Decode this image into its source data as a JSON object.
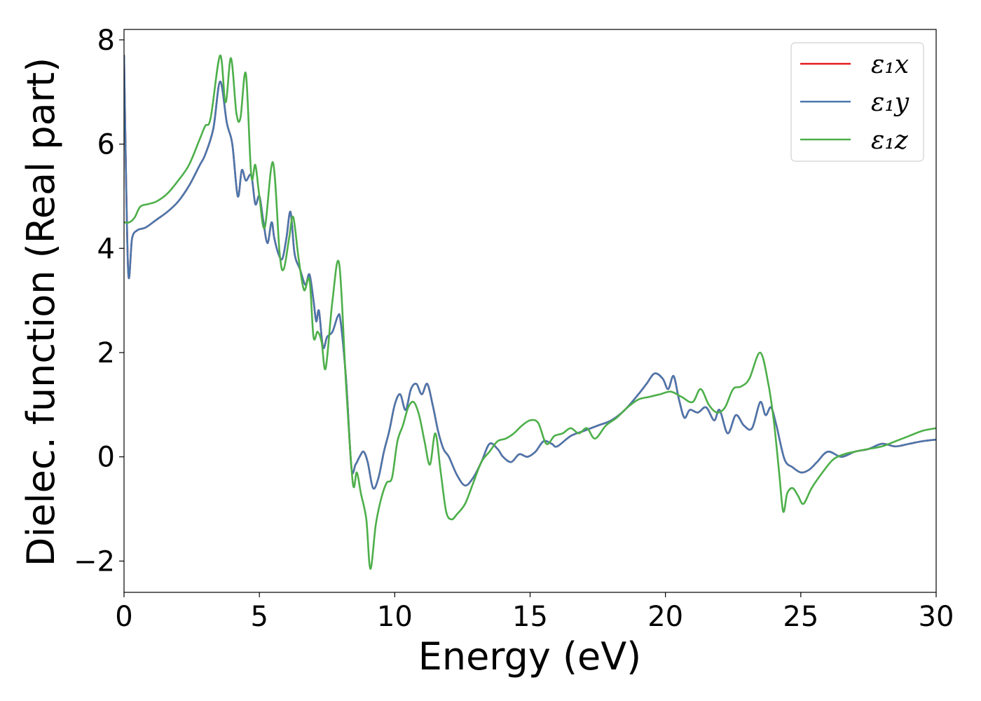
{
  "chart_data": {
    "type": "line",
    "xlabel": "Energy (eV)",
    "ylabel": "Dielec. function (Real part)",
    "xlim": [
      0,
      30
    ],
    "ylim": [
      -2.6,
      8.2
    ],
    "xticks": [
      0,
      5,
      10,
      15,
      20,
      25,
      30
    ],
    "xtick_labels": [
      "0",
      "5",
      "10",
      "15",
      "20",
      "25",
      "30"
    ],
    "yticks": [
      -2,
      0,
      2,
      4,
      6,
      8
    ],
    "ytick_labels": [
      "−2",
      "0",
      "2",
      "4",
      "6",
      "8"
    ],
    "grid": false,
    "legend_position": "top-right",
    "series": [
      {
        "name": "ε₁x",
        "color": "#e41a1c",
        "x": [
          0,
          0.15,
          0.3,
          0.5,
          0.8,
          1.2,
          1.6,
          2.0,
          2.4,
          2.8,
          3.0,
          3.3,
          3.55,
          3.8,
          4.0,
          4.2,
          4.35,
          4.5,
          4.7,
          4.85,
          5.0,
          5.15,
          5.3,
          5.45,
          5.55,
          5.7,
          5.85,
          6.0,
          6.15,
          6.3,
          6.5,
          6.7,
          6.85,
          7.0,
          7.1,
          7.2,
          7.35,
          7.5,
          7.7,
          7.9,
          8.0,
          8.2,
          8.4,
          8.55,
          8.7,
          8.85,
          9.0,
          9.2,
          9.4,
          9.6,
          9.8,
          10.0,
          10.2,
          10.4,
          10.6,
          10.8,
          11.0,
          11.2,
          11.4,
          11.6,
          11.8,
          12.0,
          12.3,
          12.6,
          12.9,
          13.2,
          13.5,
          13.8,
          14.0,
          14.3,
          14.6,
          14.9,
          15.2,
          15.5,
          15.8,
          16.0,
          16.5,
          17.0,
          17.5,
          18.0,
          18.5,
          19.0,
          19.3,
          19.6,
          19.9,
          20.1,
          20.3,
          20.5,
          20.7,
          20.9,
          21.2,
          21.5,
          21.8,
          22.0,
          22.3,
          22.6,
          22.9,
          23.2,
          23.5,
          23.7,
          23.9,
          24.1,
          24.4,
          24.7,
          25.0,
          25.3,
          25.6,
          26.0,
          26.5,
          27.0,
          27.5,
          28.0,
          28.5,
          29.0,
          29.5,
          30.0
        ],
        "y": [
          7.7,
          3.6,
          4.2,
          4.35,
          4.4,
          4.55,
          4.7,
          4.9,
          5.2,
          5.6,
          5.8,
          6.3,
          7.2,
          6.4,
          6.0,
          5.0,
          5.5,
          5.3,
          5.4,
          4.85,
          5.0,
          4.5,
          4.1,
          4.5,
          4.2,
          3.9,
          3.8,
          4.2,
          4.7,
          3.9,
          3.6,
          3.3,
          3.5,
          3.0,
          2.6,
          2.8,
          2.1,
          2.3,
          2.4,
          2.7,
          2.6,
          1.5,
          -0.2,
          -0.15,
          0.0,
          0.1,
          -0.1,
          -0.6,
          -0.4,
          0.1,
          0.5,
          1.0,
          1.2,
          0.9,
          1.3,
          1.4,
          1.2,
          1.4,
          1.0,
          0.5,
          0.15,
          0.0,
          -0.35,
          -0.55,
          -0.4,
          -0.1,
          0.25,
          0.15,
          0.0,
          -0.1,
          0.05,
          0.0,
          0.1,
          0.3,
          0.25,
          0.2,
          0.4,
          0.5,
          0.6,
          0.7,
          0.9,
          1.2,
          1.4,
          1.6,
          1.5,
          1.3,
          1.55,
          1.1,
          0.75,
          0.9,
          0.85,
          0.95,
          0.7,
          0.9,
          0.45,
          0.8,
          0.6,
          0.55,
          1.05,
          0.8,
          0.95,
          0.6,
          -0.05,
          -0.2,
          -0.3,
          -0.25,
          -0.1,
          0.1,
          0.0,
          0.1,
          0.15,
          0.25,
          0.2,
          0.25,
          0.3,
          0.33
        ]
      },
      {
        "name": "ε₁y",
        "color": "#4a77ad",
        "x": [
          0,
          0.15,
          0.3,
          0.5,
          0.8,
          1.2,
          1.6,
          2.0,
          2.4,
          2.8,
          3.0,
          3.3,
          3.55,
          3.8,
          4.0,
          4.2,
          4.35,
          4.5,
          4.7,
          4.85,
          5.0,
          5.15,
          5.3,
          5.45,
          5.55,
          5.7,
          5.85,
          6.0,
          6.15,
          6.3,
          6.5,
          6.7,
          6.85,
          7.0,
          7.1,
          7.2,
          7.35,
          7.5,
          7.7,
          7.9,
          8.0,
          8.2,
          8.4,
          8.55,
          8.7,
          8.85,
          9.0,
          9.2,
          9.4,
          9.6,
          9.8,
          10.0,
          10.2,
          10.4,
          10.6,
          10.8,
          11.0,
          11.2,
          11.4,
          11.6,
          11.8,
          12.0,
          12.3,
          12.6,
          12.9,
          13.2,
          13.5,
          13.8,
          14.0,
          14.3,
          14.6,
          14.9,
          15.2,
          15.5,
          15.8,
          16.0,
          16.5,
          17.0,
          17.5,
          18.0,
          18.5,
          19.0,
          19.3,
          19.6,
          19.9,
          20.1,
          20.3,
          20.5,
          20.7,
          20.9,
          21.2,
          21.5,
          21.8,
          22.0,
          22.3,
          22.6,
          22.9,
          23.2,
          23.5,
          23.7,
          23.9,
          24.1,
          24.4,
          24.7,
          25.0,
          25.3,
          25.6,
          26.0,
          26.5,
          27.0,
          27.5,
          28.0,
          28.5,
          29.0,
          29.5,
          30.0
        ],
        "y": [
          7.7,
          3.6,
          4.2,
          4.35,
          4.4,
          4.55,
          4.7,
          4.9,
          5.2,
          5.6,
          5.8,
          6.3,
          7.2,
          6.4,
          6.0,
          5.0,
          5.5,
          5.3,
          5.4,
          4.85,
          5.0,
          4.5,
          4.1,
          4.5,
          4.2,
          3.9,
          3.8,
          4.2,
          4.7,
          3.9,
          3.6,
          3.3,
          3.5,
          3.0,
          2.6,
          2.8,
          2.1,
          2.3,
          2.4,
          2.7,
          2.6,
          1.5,
          -0.2,
          -0.15,
          0.0,
          0.1,
          -0.1,
          -0.6,
          -0.4,
          0.1,
          0.5,
          1.0,
          1.2,
          0.9,
          1.3,
          1.4,
          1.2,
          1.4,
          1.0,
          0.5,
          0.15,
          0.0,
          -0.35,
          -0.55,
          -0.4,
          -0.1,
          0.25,
          0.15,
          0.0,
          -0.1,
          0.05,
          0.0,
          0.1,
          0.3,
          0.25,
          0.2,
          0.4,
          0.5,
          0.6,
          0.7,
          0.9,
          1.2,
          1.4,
          1.6,
          1.5,
          1.3,
          1.55,
          1.1,
          0.75,
          0.9,
          0.85,
          0.95,
          0.7,
          0.9,
          0.45,
          0.8,
          0.6,
          0.55,
          1.05,
          0.8,
          0.95,
          0.6,
          -0.05,
          -0.2,
          -0.3,
          -0.25,
          -0.1,
          0.1,
          0.0,
          0.1,
          0.15,
          0.25,
          0.2,
          0.25,
          0.3,
          0.33
        ]
      },
      {
        "name": "ε₁z",
        "color": "#4daf4a",
        "x": [
          0,
          0.2,
          0.4,
          0.6,
          0.9,
          1.2,
          1.6,
          2.0,
          2.4,
          2.8,
          3.0,
          3.2,
          3.55,
          3.75,
          3.95,
          4.15,
          4.3,
          4.5,
          4.7,
          4.85,
          5.0,
          5.2,
          5.5,
          5.75,
          5.9,
          6.1,
          6.25,
          6.45,
          6.65,
          6.85,
          7.0,
          7.15,
          7.3,
          7.45,
          7.7,
          7.95,
          8.2,
          8.45,
          8.6,
          8.75,
          8.95,
          9.1,
          9.3,
          9.5,
          9.7,
          9.9,
          10.1,
          10.3,
          10.5,
          10.7,
          10.9,
          11.1,
          11.3,
          11.5,
          11.7,
          11.9,
          12.1,
          12.3,
          12.6,
          12.9,
          13.2,
          13.5,
          13.8,
          14.1,
          14.4,
          14.7,
          15.0,
          15.3,
          15.6,
          15.9,
          16.2,
          16.5,
          16.8,
          17.1,
          17.4,
          17.8,
          18.2,
          18.6,
          19.0,
          19.4,
          19.8,
          20.2,
          20.6,
          21.0,
          21.3,
          21.6,
          21.9,
          22.2,
          22.5,
          22.8,
          23.1,
          23.5,
          23.8,
          24.0,
          24.2,
          24.35,
          24.5,
          24.7,
          24.9,
          25.1,
          25.4,
          25.8,
          26.2,
          26.6,
          27.0,
          27.5,
          28.0,
          28.5,
          29.0,
          29.5,
          30.0
        ],
        "y": [
          4.5,
          4.5,
          4.6,
          4.8,
          4.85,
          4.9,
          5.05,
          5.3,
          5.6,
          6.1,
          6.35,
          6.5,
          7.7,
          6.8,
          7.65,
          6.6,
          6.5,
          7.35,
          5.4,
          5.6,
          5.0,
          4.4,
          5.65,
          3.9,
          3.6,
          4.2,
          4.6,
          3.8,
          3.2,
          3.4,
          2.3,
          2.4,
          2.2,
          1.7,
          3.0,
          3.7,
          1.4,
          -0.5,
          -0.3,
          -0.7,
          -1.2,
          -2.15,
          -1.3,
          -0.8,
          -0.5,
          -0.4,
          0.3,
          0.6,
          0.95,
          1.05,
          0.8,
          0.3,
          -0.15,
          0.45,
          -0.3,
          -1.05,
          -1.2,
          -1.1,
          -0.9,
          -0.5,
          -0.1,
          0.1,
          0.3,
          0.35,
          0.45,
          0.6,
          0.7,
          0.65,
          0.25,
          0.4,
          0.45,
          0.55,
          0.45,
          0.55,
          0.35,
          0.6,
          0.75,
          0.95,
          1.1,
          1.15,
          1.2,
          1.25,
          1.15,
          1.05,
          1.3,
          1.0,
          0.85,
          0.95,
          1.3,
          1.35,
          1.5,
          2.0,
          1.4,
          0.7,
          -0.3,
          -1.05,
          -0.7,
          -0.6,
          -0.75,
          -0.9,
          -0.6,
          -0.3,
          -0.05,
          0.05,
          0.1,
          0.15,
          0.2,
          0.3,
          0.4,
          0.5,
          0.55
        ]
      }
    ]
  }
}
